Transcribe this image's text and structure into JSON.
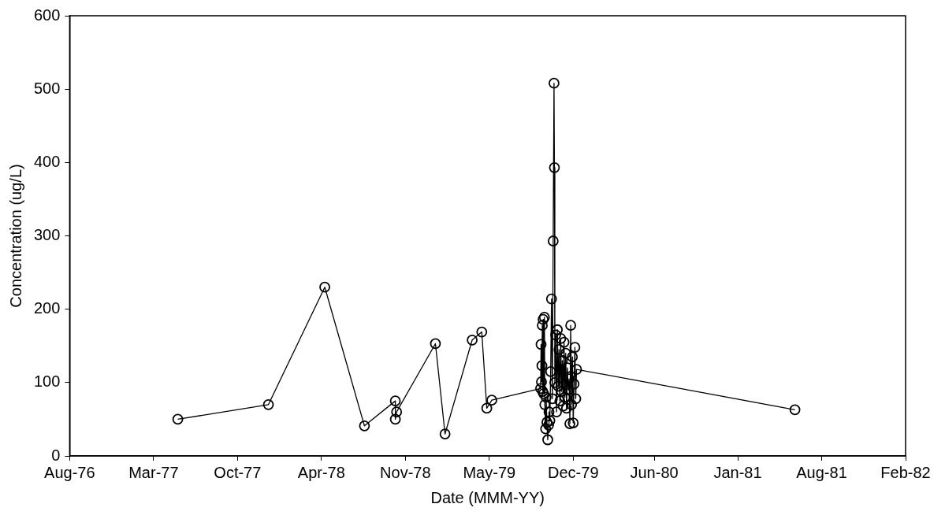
{
  "chart_data": {
    "type": "line",
    "xlabel": "Date (MMM-YY)",
    "ylabel": "Concentration (ug/L)",
    "xlim": [
      "1976-08-28",
      "1982-02-20"
    ],
    "xticks": [
      {
        "value": "1976-08-28",
        "label": "Aug-76"
      },
      {
        "value": "1977-03-17",
        "label": "Mar-77"
      },
      {
        "value": "1977-10-04",
        "label": "Oct-77"
      },
      {
        "value": "1978-04-23",
        "label": "Apr-78"
      },
      {
        "value": "1978-11-10",
        "label": "Nov-78"
      },
      {
        "value": "1979-05-30",
        "label": "May-79"
      },
      {
        "value": "1979-12-17",
        "label": "Dec-79"
      },
      {
        "value": "1980-06-28",
        "label": "Jun-80"
      },
      {
        "value": "1981-01-14",
        "label": "Jan-81"
      },
      {
        "value": "1981-08-03",
        "label": "Aug-81"
      },
      {
        "value": "1982-02-20",
        "label": "Feb-82"
      }
    ],
    "ylim": [
      0,
      600
    ],
    "yticks": [
      0,
      100,
      200,
      300,
      400,
      500,
      600
    ],
    "grid": false,
    "legend": false,
    "marker": "circle",
    "line_style": "solid",
    "x": [
      "1977-05-14",
      "1977-12-17",
      "1978-05-01",
      "1978-08-04",
      "1978-10-17",
      "1978-10-17",
      "1978-10-20",
      "1979-01-21",
      "1979-02-13",
      "1979-04-19",
      "1979-05-12",
      "1979-05-24",
      "1979-06-05",
      "1979-09-30",
      "1979-10-01",
      "1979-10-02",
      "1979-10-03",
      "1979-10-04",
      "1979-10-05",
      "1979-10-06",
      "1979-10-07",
      "1979-10-09",
      "1979-10-10",
      "1979-10-12",
      "1979-10-13",
      "1979-10-15",
      "1979-10-17",
      "1979-10-19",
      "1979-10-20",
      "1979-10-22",
      "1979-10-24",
      "1979-10-26",
      "1979-10-28",
      "1979-10-30",
      "1979-11-01",
      "1979-11-02",
      "1979-11-03",
      "1979-11-05",
      "1979-11-07",
      "1979-11-09",
      "1979-11-11",
      "1979-11-13",
      "1979-11-15",
      "1979-11-17",
      "1979-11-19",
      "1979-11-21",
      "1979-11-23",
      "1979-11-25",
      "1979-11-27",
      "1979-11-29",
      "1979-12-01",
      "1979-12-03",
      "1979-12-05",
      "1979-12-07",
      "1979-12-09",
      "1979-12-11",
      "1979-12-13",
      "1979-12-15",
      "1979-12-17",
      "1979-12-19",
      "1979-12-21",
      "1979-12-23",
      "1979-12-25",
      "1981-05-31"
    ],
    "series": [
      {
        "color": "#000000",
        "values": [
          50,
          70,
          230,
          41,
          75,
          50,
          60,
          153,
          30,
          158,
          169,
          65,
          76,
          92,
          152,
          101,
          123,
          178,
          88,
          186,
          85,
          189,
          70,
          37,
          80,
          46,
          22,
          42,
          60,
          48,
          115,
          214,
          78,
          293,
          508,
          393,
          100,
          165,
          60,
          172,
          95,
          145,
          75,
          160,
          88,
          130,
          68,
          155,
          80,
          140,
          65,
          120,
          90,
          105,
          44,
          178,
          70,
          135,
          45,
          98,
          148,
          78,
          118,
          63
        ]
      }
    ]
  }
}
